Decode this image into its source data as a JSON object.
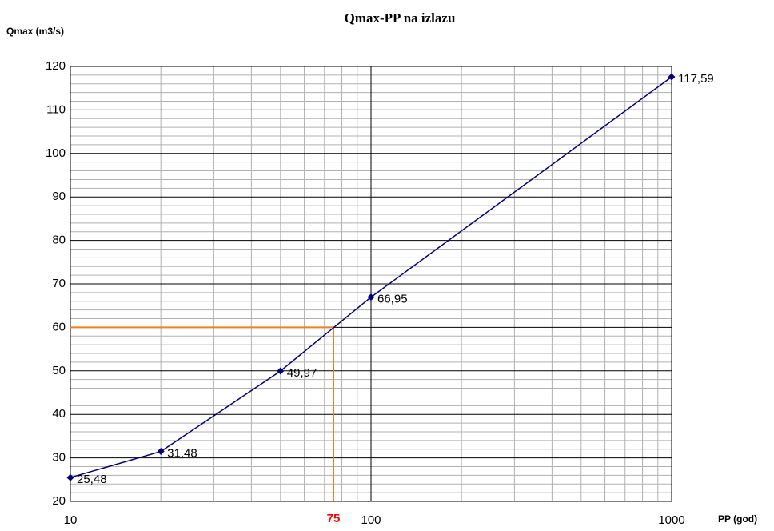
{
  "chart_data": {
    "type": "line",
    "title": "Qmax-PP na izlazu",
    "y_label": "Qmax (m3/s)",
    "x_label": "PP (god)",
    "x": [
      10,
      20,
      50,
      100,
      1000
    ],
    "series": [
      {
        "name": "Qmax",
        "color": "#000080",
        "values": [
          25.48,
          31.48,
          49.97,
          66.95,
          117.59
        ],
        "value_labels": [
          "25,48",
          "31,48",
          "49,97",
          "66,95",
          "117,59"
        ]
      }
    ],
    "xlim": [
      10,
      1000
    ],
    "xticks": [
      10,
      100,
      1000
    ],
    "xscale": "log",
    "ylim": [
      20,
      120
    ],
    "yticks": [
      20,
      30,
      40,
      50,
      60,
      70,
      80,
      90,
      100,
      110,
      120
    ],
    "grid": true,
    "minor_grid": true,
    "reference": {
      "x": 75,
      "y": 60,
      "color": "#f07f20",
      "label_color": "#ff0000"
    }
  }
}
